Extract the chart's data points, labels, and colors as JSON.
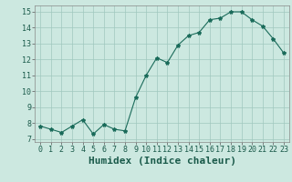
{
  "x": [
    0,
    1,
    2,
    3,
    4,
    5,
    6,
    7,
    8,
    9,
    10,
    11,
    12,
    13,
    14,
    15,
    16,
    17,
    18,
    19,
    20,
    21,
    22,
    23
  ],
  "y": [
    7.8,
    7.6,
    7.4,
    7.8,
    8.2,
    7.3,
    7.9,
    7.6,
    7.5,
    9.6,
    11.0,
    12.1,
    11.8,
    12.9,
    13.5,
    13.7,
    14.5,
    14.6,
    15.0,
    15.0,
    14.5,
    14.1,
    13.3,
    12.4
  ],
  "line_color": "#1a6b5a",
  "marker": "*",
  "marker_size": 3,
  "bg_color": "#cce8e0",
  "grid_color": "#a0c8be",
  "xlabel": "Humidex (Indice chaleur)",
  "xlim": [
    -0.5,
    23.5
  ],
  "ylim": [
    6.8,
    15.4
  ],
  "yticks": [
    7,
    8,
    9,
    10,
    11,
    12,
    13,
    14,
    15
  ],
  "xticks": [
    0,
    1,
    2,
    3,
    4,
    5,
    6,
    7,
    8,
    9,
    10,
    11,
    12,
    13,
    14,
    15,
    16,
    17,
    18,
    19,
    20,
    21,
    22,
    23
  ],
  "tick_fontsize": 6,
  "xlabel_fontsize": 8
}
